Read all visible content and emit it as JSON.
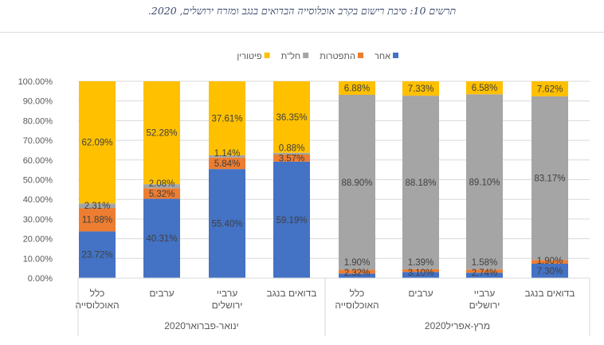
{
  "chart_data": {
    "type": "bar",
    "stacked": "100%",
    "title": "תרשים 10: סיבת רישום בקרב אוכלוסייה הבדואים בנגב ומזרח ירושלים, 2020.",
    "groups": [
      {
        "label": "ינואר-פברואר2020",
        "categories": [
          "כלל האוכלוסייה",
          "ערבים",
          "ערביי ירושלים",
          "בדואים בנגב"
        ]
      },
      {
        "label": "מרץ-אפריל2020",
        "categories": [
          "כלל האוכלוסייה",
          "ערבים",
          "ערביי ירושלים",
          "בדואים בנגב"
        ]
      }
    ],
    "series": [
      {
        "name": "אחר",
        "color": "#4472c4",
        "values": [
          23.72,
          40.31,
          55.4,
          59.19,
          2.32,
          3.1,
          2.74,
          7.3
        ]
      },
      {
        "name": "התפטרות",
        "color": "#ed7d31",
        "values": [
          11.88,
          5.32,
          5.84,
          3.57,
          1.9,
          1.39,
          1.58,
          1.9
        ]
      },
      {
        "name": "חל\"ת",
        "color": "#a5a5a5",
        "values": [
          2.31,
          2.08,
          1.14,
          0.88,
          88.9,
          88.18,
          89.1,
          83.17
        ]
      },
      {
        "name": "פיטורין",
        "color": "#ffc000",
        "values": [
          62.09,
          52.28,
          37.61,
          36.35,
          6.88,
          7.33,
          6.58,
          7.62
        ]
      }
    ],
    "ylim": [
      0,
      100
    ],
    "yticks": [
      "0.00%",
      "10.00%",
      "20.00%",
      "30.00%",
      "40.00%",
      "50.00%",
      "60.00%",
      "70.00%",
      "80.00%",
      "90.00%",
      "100.00%"
    ],
    "grid": true,
    "legend": "top"
  }
}
